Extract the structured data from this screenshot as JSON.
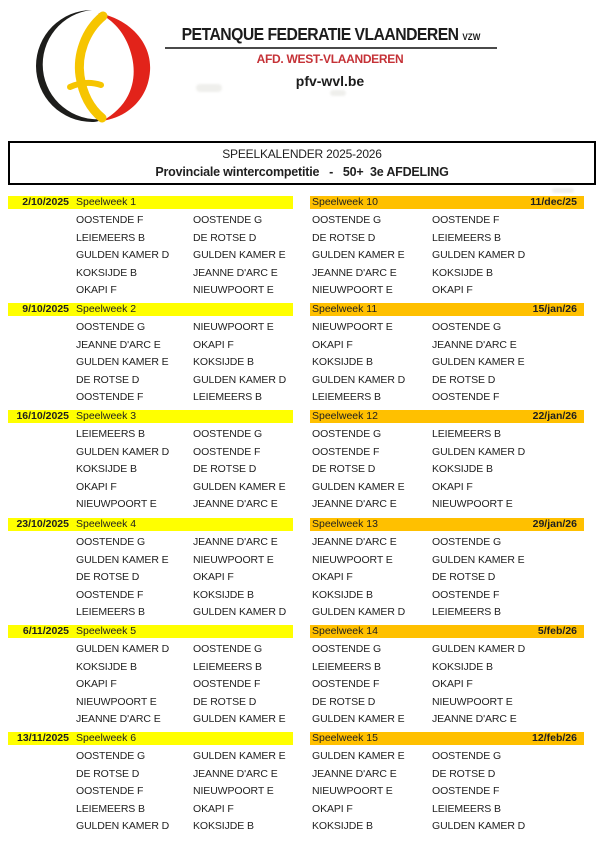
{
  "header": {
    "org_name": "PETANQUE FEDERATIE VLAANDEREN",
    "org_suffix": "VZW",
    "department": "AFD. WEST-VLAANDEREN",
    "website": "pfv-wvl.be"
  },
  "title_box": {
    "line1": "SPEELKALENDER 2025-2026",
    "line2": "Provinciale wintercompetitie   -   50+  3e AFDELING"
  },
  "colors": {
    "left_week_header_bg": "#ffff00",
    "right_week_header_bg": "#ffc000",
    "department_red": "#c53237",
    "logo_black": "#1d1d1b",
    "logo_yellow": "#f6c500",
    "logo_red": "#e2231a"
  },
  "weeks_left": [
    {
      "date": "2/10/2025",
      "label": "Speelweek 1",
      "home": [
        "OOSTENDE F",
        "LEIEMEERS B",
        "GULDEN KAMER D",
        "KOKSIJDE B",
        "OKAPI F"
      ],
      "away": [
        "OOSTENDE G",
        "DE ROTSE D",
        "GULDEN KAMER E",
        "JEANNE D'ARC E",
        "NIEUWPOORT E"
      ]
    },
    {
      "date": "9/10/2025",
      "label": "Speelweek 2",
      "home": [
        "OOSTENDE G",
        "JEANNE D'ARC E",
        "GULDEN KAMER E",
        "DE ROTSE D",
        "OOSTENDE F"
      ],
      "away": [
        "NIEUWPOORT E",
        "OKAPI F",
        "KOKSIJDE B",
        "GULDEN KAMER D",
        "LEIEMEERS B"
      ]
    },
    {
      "date": "16/10/2025",
      "label": "Speelweek 3",
      "home": [
        "LEIEMEERS B",
        "GULDEN KAMER D",
        "KOKSIJDE B",
        "OKAPI F",
        "NIEUWPOORT E"
      ],
      "away": [
        "OOSTENDE G",
        "OOSTENDE F",
        "DE ROTSE D",
        "GULDEN KAMER E",
        "JEANNE D'ARC E"
      ]
    },
    {
      "date": "23/10/2025",
      "label": "Speelweek 4",
      "home": [
        "OOSTENDE G",
        "GULDEN KAMER E",
        "DE ROTSE D",
        "OOSTENDE F",
        "LEIEMEERS B"
      ],
      "away": [
        "JEANNE D'ARC E",
        "NIEUWPOORT E",
        "OKAPI F",
        "KOKSIJDE B",
        "GULDEN KAMER D"
      ]
    },
    {
      "date": "6/11/2025",
      "label": "Speelweek 5",
      "home": [
        "GULDEN KAMER D",
        "KOKSIJDE B",
        "OKAPI F",
        "NIEUWPOORT E",
        "JEANNE D'ARC E"
      ],
      "away": [
        "OOSTENDE G",
        "LEIEMEERS B",
        "OOSTENDE F",
        "DE ROTSE D",
        "GULDEN KAMER E"
      ]
    },
    {
      "date": "13/11/2025",
      "label": "Speelweek 6",
      "home": [
        "OOSTENDE G",
        "DE ROTSE D",
        "OOSTENDE F",
        "LEIEMEERS B",
        "GULDEN KAMER D"
      ],
      "away": [
        "GULDEN KAMER E",
        "JEANNE D'ARC E",
        "NIEUWPOORT E",
        "OKAPI F",
        "KOKSIJDE B"
      ]
    }
  ],
  "weeks_right": [
    {
      "date": "11/dec/25",
      "label": "Speelweek 10",
      "home": [
        "OOSTENDE G",
        "DE ROTSE D",
        "GULDEN KAMER E",
        "JEANNE D'ARC E",
        "NIEUWPOORT E"
      ],
      "away": [
        "OOSTENDE F",
        "LEIEMEERS B",
        "GULDEN KAMER D",
        "KOKSIJDE B",
        "OKAPI F"
      ]
    },
    {
      "date": "15/jan/26",
      "label": "Speelweek 11",
      "home": [
        "NIEUWPOORT E",
        "OKAPI F",
        "KOKSIJDE B",
        "GULDEN KAMER D",
        "LEIEMEERS B"
      ],
      "away": [
        "OOSTENDE G",
        "JEANNE D'ARC E",
        "GULDEN KAMER E",
        "DE ROTSE D",
        "OOSTENDE F"
      ]
    },
    {
      "date": "22/jan/26",
      "label": "Speelweek 12",
      "home": [
        "OOSTENDE G",
        "OOSTENDE F",
        "DE ROTSE D",
        "GULDEN KAMER E",
        "JEANNE D'ARC E"
      ],
      "away": [
        "LEIEMEERS B",
        "GULDEN KAMER D",
        "KOKSIJDE B",
        "OKAPI F",
        "NIEUWPOORT E"
      ]
    },
    {
      "date": "29/jan/26",
      "label": "Speelweek 13",
      "home": [
        "JEANNE D'ARC E",
        "NIEUWPOORT E",
        "OKAPI F",
        "KOKSIJDE B",
        "GULDEN KAMER D"
      ],
      "away": [
        "OOSTENDE G",
        "GULDEN KAMER E",
        "DE ROTSE D",
        "OOSTENDE F",
        "LEIEMEERS B"
      ]
    },
    {
      "date": "5/feb/26",
      "label": "Speelweek 14",
      "home": [
        "OOSTENDE G",
        "LEIEMEERS B",
        "OOSTENDE F",
        "DE ROTSE D",
        "GULDEN KAMER E"
      ],
      "away": [
        "GULDEN KAMER D",
        "KOKSIJDE B",
        "OKAPI F",
        "NIEUWPOORT E",
        "JEANNE D'ARC E"
      ]
    },
    {
      "date": "12/feb/26",
      "label": "Speelweek 15",
      "home": [
        "GULDEN KAMER E",
        "JEANNE D'ARC E",
        "NIEUWPOORT E",
        "OKAPI F",
        "KOKSIJDE B"
      ],
      "away": [
        "OOSTENDE G",
        "DE ROTSE D",
        "OOSTENDE F",
        "LEIEMEERS B",
        "GULDEN KAMER D"
      ]
    }
  ]
}
